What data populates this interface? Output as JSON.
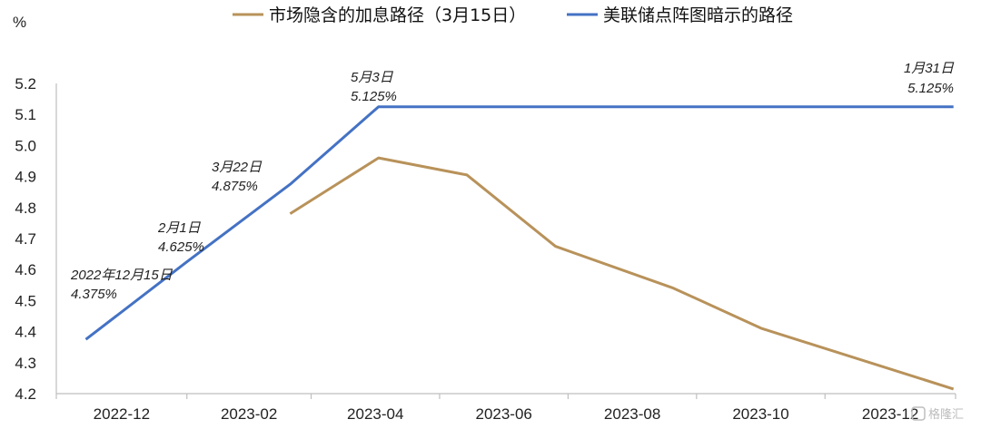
{
  "chart_data": {
    "type": "line",
    "ylabel": "%",
    "ylim": [
      4.2,
      5.2
    ],
    "yticks": [
      "4.2",
      "4.3",
      "4.4",
      "4.5",
      "4.6",
      "4.7",
      "4.8",
      "4.9",
      "5.0",
      "5.1",
      "5.2"
    ],
    "xlim": [
      "2022-12-01",
      "2024-02-01"
    ],
    "xticks": [
      {
        "label": "2022-12",
        "date": "2022-12-01"
      },
      {
        "label": "2023-02",
        "date": "2023-02-01"
      },
      {
        "label": "2023-04",
        "date": "2023-04-01"
      },
      {
        "label": "2023-06",
        "date": "2023-06-01"
      },
      {
        "label": "2023-08",
        "date": "2023-08-01"
      },
      {
        "label": "2023-10",
        "date": "2023-10-01"
      },
      {
        "label": "2023-12",
        "date": "2023-12-01"
      }
    ],
    "legend_position": "top",
    "series": [
      {
        "name": "市场隐含的加息路径（3月15日）",
        "color": "#B8925A",
        "points": [
          {
            "x": "2023-03-22",
            "y": 4.78
          },
          {
            "x": "2023-05-03",
            "y": 4.96
          },
          {
            "x": "2023-06-14",
            "y": 4.905
          },
          {
            "x": "2023-07-26",
            "y": 4.675
          },
          {
            "x": "2023-09-20",
            "y": 4.54
          },
          {
            "x": "2023-11-01",
            "y": 4.41
          },
          {
            "x": "2024-01-31",
            "y": 4.215
          }
        ]
      },
      {
        "name": "美联储点阵图暗示的路径",
        "color": "#4472C4",
        "points": [
          {
            "x": "2022-12-15",
            "y": 4.375
          },
          {
            "x": "2023-02-01",
            "y": 4.625
          },
          {
            "x": "2023-03-22",
            "y": 4.875
          },
          {
            "x": "2023-05-03",
            "y": 5.125
          },
          {
            "x": "2024-01-31",
            "y": 5.125
          }
        ]
      }
    ],
    "annotations": [
      {
        "line1": "2022年12月15日",
        "line2": "4.375%",
        "x": "2022-12-15",
        "y": 4.375
      },
      {
        "line1": "2月1日",
        "line2": "4.625%",
        "x": "2023-02-01",
        "y": 4.625
      },
      {
        "line1": "3月22日",
        "line2": "4.875%",
        "x": "2023-03-22",
        "y": 4.875
      },
      {
        "line1": "5月3日",
        "line2": "5.125%",
        "x": "2023-05-03",
        "y": 5.125
      },
      {
        "line1": "1月31日",
        "line2": "5.125%",
        "x": "2024-01-31",
        "y": 5.125
      }
    ]
  },
  "watermark": {
    "text": "格隆汇",
    "icon": "gelonghui-logo-icon"
  }
}
